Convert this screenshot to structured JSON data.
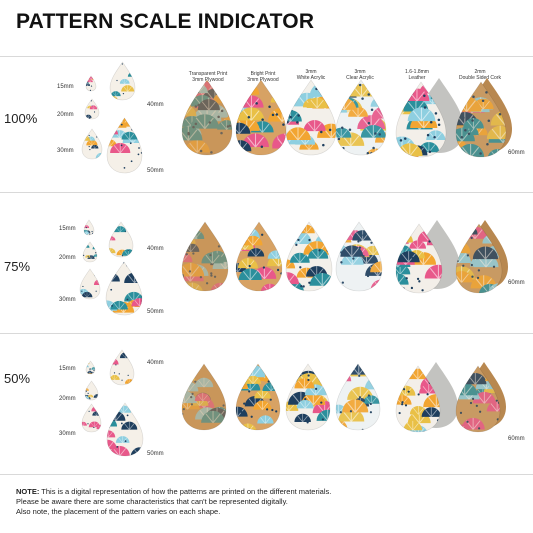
{
  "title": "PATTERN SCALE INDICATOR",
  "sizes": [
    "15mm",
    "20mm",
    "30mm",
    "40mm",
    "50mm"
  ],
  "size_60": "60mm",
  "materials": [
    {
      "line1": "Transparent Print",
      "line2": "3mm Plywood",
      "base": "#c9965a"
    },
    {
      "line1": "Bright Print",
      "line2": "3mm Plywood",
      "base": "#d7a264"
    },
    {
      "line1": "3mm",
      "line2": "White Acrylic",
      "base": "#f3f0ea"
    },
    {
      "line1": "3mm",
      "line2": "Clear Acrylic",
      "base": "#eef2f3"
    },
    {
      "line1": "1.6-1.8mm",
      "line2": "Leather",
      "base": "#c3c3c0"
    },
    {
      "line1": "2mm",
      "line2": "Double Sided Cork",
      "base": "#c89a63"
    }
  ],
  "rows": [
    {
      "scale": "100%"
    },
    {
      "scale": "75%"
    },
    {
      "scale": "50%"
    }
  ],
  "palette": {
    "teal": "#2b8f9c",
    "navy": "#1f3f5e",
    "orange": "#f2a531",
    "pink": "#e8588a",
    "sky": "#8ecfe0",
    "mustard": "#e9c046"
  },
  "note": {
    "label": "NOTE:",
    "line1": " This is a digital representation of how the patterns are printed on the different materials.",
    "line2": "Please be aware there are some characteristics that can't be represented digitally.",
    "line3": "Also note, the placement of the pattern varies on each shape."
  }
}
